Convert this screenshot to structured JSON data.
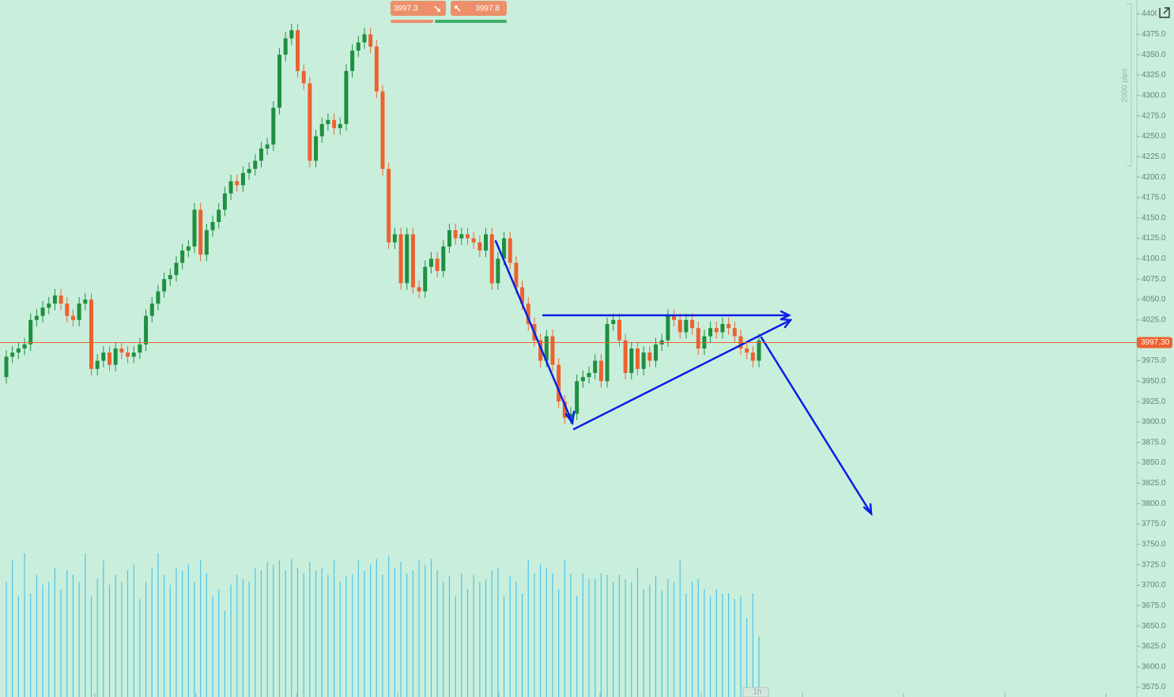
{
  "chart_data": {
    "type": "candlestick",
    "sell_price": "3997.3",
    "buy_price": "3997.8",
    "range_label": "2000 pips",
    "timeframe": "1h",
    "last_price": {
      "value": 3997.3,
      "label": "3997.30"
    },
    "up_color": "#1f8f3f",
    "down_color": "#ee6130",
    "volume_color": "#4ec3ea",
    "ylim": [
      3563,
      4417
    ],
    "yticks": [
      {
        "value": 3575,
        "label": "3575.0"
      },
      {
        "value": 3600,
        "label": "3600.0"
      },
      {
        "value": 3625,
        "label": "3625.0"
      },
      {
        "value": 3650,
        "label": "3650.0"
      },
      {
        "value": 3675,
        "label": "3675.0"
      },
      {
        "value": 3700,
        "label": "3700.0"
      },
      {
        "value": 3725,
        "label": "3725.0"
      },
      {
        "value": 3750,
        "label": "3750.0"
      },
      {
        "value": 3775,
        "label": "3775.0"
      },
      {
        "value": 3800,
        "label": "3800.0"
      },
      {
        "value": 3825,
        "label": "3825.0"
      },
      {
        "value": 3850,
        "label": "3850.0"
      },
      {
        "value": 3875,
        "label": "3875.0"
      },
      {
        "value": 3900,
        "label": "3900.0"
      },
      {
        "value": 3925,
        "label": "3925.0"
      },
      {
        "value": 3950,
        "label": "3950.0"
      },
      {
        "value": 3975,
        "label": "3975.0"
      },
      {
        "value": 4000,
        "label": "4000.0"
      },
      {
        "value": 4025,
        "label": "4025.0"
      },
      {
        "value": 4050,
        "label": "4050.0"
      },
      {
        "value": 4075,
        "label": "4075.0"
      },
      {
        "value": 4100,
        "label": "4100.0"
      },
      {
        "value": 4125,
        "label": "4125.0"
      },
      {
        "value": 4150,
        "label": "4150.0"
      },
      {
        "value": 4175,
        "label": "4175.0"
      },
      {
        "value": 4200,
        "label": "4200.0"
      },
      {
        "value": 4225,
        "label": "4225.0"
      },
      {
        "value": 4250,
        "label": "4250.0"
      },
      {
        "value": 4275,
        "label": "4275.0"
      },
      {
        "value": 4300,
        "label": "4300.0"
      },
      {
        "value": 4325,
        "label": "4325.0"
      },
      {
        "value": 4350,
        "label": "4350.0"
      },
      {
        "value": 4375,
        "label": "4375.0"
      },
      {
        "value": 4400,
        "label": "4400.0"
      }
    ],
    "open": [
      3955,
      3980,
      3985,
      3990,
      3995,
      4025,
      4030,
      4040,
      4045,
      4055,
      4045,
      4030,
      4025,
      4045,
      4050,
      3965,
      3975,
      3985,
      3970,
      3990,
      3985,
      3980,
      3985,
      3995,
      4030,
      4045,
      4060,
      4075,
      4080,
      4095,
      4110,
      4115,
      4160,
      4105,
      4135,
      4145,
      4160,
      4180,
      4195,
      4190,
      4205,
      4210,
      4220,
      4235,
      4240,
      4285,
      4350,
      4370,
      4380,
      4330,
      4315,
      4220,
      4250,
      4265,
      4270,
      4260,
      4265,
      4330,
      4355,
      4365,
      4375,
      4360,
      4305,
      4210,
      4120,
      4130,
      4070,
      4130,
      4065,
      4060,
      4090,
      4100,
      4085,
      4115,
      4135,
      4125,
      4130,
      4125,
      4120,
      4110,
      4130,
      4070,
      4100,
      4125,
      4095,
      4065,
      4045,
      4020,
      4000,
      3975,
      4005,
      3970,
      3925,
      3905,
      3910,
      3950,
      3955,
      3960,
      3975,
      3950,
      4020,
      4025,
      4000,
      3960,
      3990,
      3965,
      3985,
      3975,
      3995,
      4000,
      4030,
      4025,
      4010,
      4025,
      4015,
      3990,
      4005,
      4015,
      4010,
      4020,
      4015,
      4005,
      3990,
      3985,
      3975
    ],
    "high": [
      3988,
      3993,
      3998,
      4003,
      4033,
      4038,
      4048,
      4053,
      4063,
      4063,
      4053,
      4038,
      4053,
      4058,
      4058,
      3983,
      3993,
      3993,
      3998,
      3998,
      3993,
      3993,
      4003,
      4038,
      4053,
      4068,
      4083,
      4088,
      4103,
      4118,
      4123,
      4168,
      4168,
      4143,
      4153,
      4168,
      4188,
      4203,
      4203,
      4213,
      4218,
      4228,
      4243,
      4248,
      4293,
      4358,
      4378,
      4388,
      4388,
      4338,
      4323,
      4258,
      4273,
      4278,
      4278,
      4273,
      4338,
      4363,
      4373,
      4383,
      4383,
      4368,
      4313,
      4218,
      4138,
      4138,
      4138,
      4138,
      4073,
      4098,
      4108,
      4108,
      4123,
      4143,
      4143,
      4138,
      4138,
      4133,
      4128,
      4138,
      4138,
      4108,
      4133,
      4133,
      4103,
      4073,
      4053,
      4028,
      4008,
      4013,
      4013,
      3978,
      3933,
      3918,
      3958,
      3963,
      3968,
      3983,
      3983,
      4028,
      4033,
      4033,
      4008,
      3998,
      3998,
      3993,
      3993,
      4003,
      4008,
      4038,
      4038,
      4033,
      4033,
      4033,
      4023,
      4013,
      4023,
      4023,
      4028,
      4028,
      4023,
      4013,
      3998,
      3993,
      4008
    ],
    "low": [
      3947,
      3972,
      3977,
      3982,
      3987,
      4017,
      4022,
      4032,
      4037,
      4037,
      4022,
      4017,
      4017,
      4037,
      3957,
      3957,
      3967,
      3962,
      3962,
      3977,
      3972,
      3972,
      3977,
      3987,
      4022,
      4037,
      4052,
      4067,
      4072,
      4087,
      4102,
      4107,
      4097,
      4097,
      4127,
      4137,
      4152,
      4172,
      4182,
      4182,
      4197,
      4202,
      4212,
      4227,
      4232,
      4277,
      4342,
      4362,
      4322,
      4307,
      4212,
      4212,
      4242,
      4257,
      4252,
      4252,
      4257,
      4322,
      4347,
      4357,
      4352,
      4297,
      4202,
      4112,
      4112,
      4062,
      4062,
      4057,
      4052,
      4052,
      4082,
      4077,
      4077,
      4107,
      4117,
      4117,
      4117,
      4112,
      4102,
      4102,
      4062,
      4062,
      4092,
      4087,
      4057,
      4037,
      4012,
      3992,
      3967,
      3967,
      3962,
      3917,
      3897,
      3897,
      3902,
      3942,
      3947,
      3952,
      3942,
      3942,
      4012,
      3992,
      3952,
      3952,
      3957,
      3957,
      3967,
      3967,
      3987,
      3992,
      4017,
      4002,
      4002,
      4007,
      3982,
      3982,
      3997,
      4002,
      4002,
      4007,
      3997,
      3982,
      3977,
      3967,
      3967
    ],
    "close": [
      3980,
      3985,
      3990,
      3995,
      4025,
      4030,
      4040,
      4045,
      4055,
      4045,
      4030,
      4025,
      4045,
      4050,
      3965,
      3975,
      3985,
      3970,
      3990,
      3985,
      3980,
      3985,
      3995,
      4030,
      4045,
      4060,
      4075,
      4080,
      4095,
      4110,
      4115,
      4160,
      4105,
      4135,
      4145,
      4160,
      4180,
      4195,
      4190,
      4205,
      4210,
      4220,
      4235,
      4240,
      4285,
      4350,
      4370,
      4380,
      4330,
      4315,
      4220,
      4250,
      4265,
      4270,
      4260,
      4265,
      4330,
      4355,
      4365,
      4375,
      4360,
      4305,
      4210,
      4120,
      4130,
      4070,
      4130,
      4065,
      4060,
      4090,
      4100,
      4085,
      4115,
      4135,
      4125,
      4130,
      4125,
      4120,
      4110,
      4130,
      4070,
      4100,
      4125,
      4095,
      4065,
      4045,
      4020,
      4000,
      3975,
      4005,
      3970,
      3925,
      3905,
      3910,
      3950,
      3955,
      3960,
      3975,
      3950,
      4020,
      4025,
      4000,
      3960,
      3990,
      3965,
      3985,
      3975,
      3995,
      4000,
      4030,
      4025,
      4010,
      4025,
      4015,
      3990,
      4005,
      4015,
      4010,
      4020,
      4015,
      4005,
      3990,
      3985,
      3975,
      4000
    ],
    "volume": [
      80,
      95,
      70,
      100,
      72,
      85,
      78,
      80,
      90,
      75,
      88,
      85,
      80,
      100,
      70,
      82,
      95,
      78,
      85,
      80,
      88,
      92,
      68,
      80,
      90,
      100,
      85,
      78,
      90,
      88,
      92,
      80,
      95,
      86,
      70,
      75,
      60,
      78,
      85,
      82,
      80,
      90,
      88,
      94,
      92,
      95,
      88,
      96,
      90,
      86,
      94,
      88,
      90,
      85,
      95,
      80,
      84,
      85,
      95,
      88,
      92,
      96,
      85,
      98,
      90,
      94,
      86,
      88,
      95,
      92,
      96,
      88,
      80,
      84,
      70,
      86,
      75,
      85,
      80,
      82,
      88,
      90,
      70,
      84,
      80,
      72,
      95,
      86,
      92,
      90,
      86,
      75,
      95,
      86,
      70,
      86,
      82,
      82,
      86,
      85,
      80,
      85,
      82,
      80,
      90,
      75,
      78,
      84,
      74,
      82,
      80,
      95,
      72,
      80,
      82,
      75,
      70,
      75,
      72,
      72,
      68,
      70,
      55,
      72,
      42
    ]
  }
}
